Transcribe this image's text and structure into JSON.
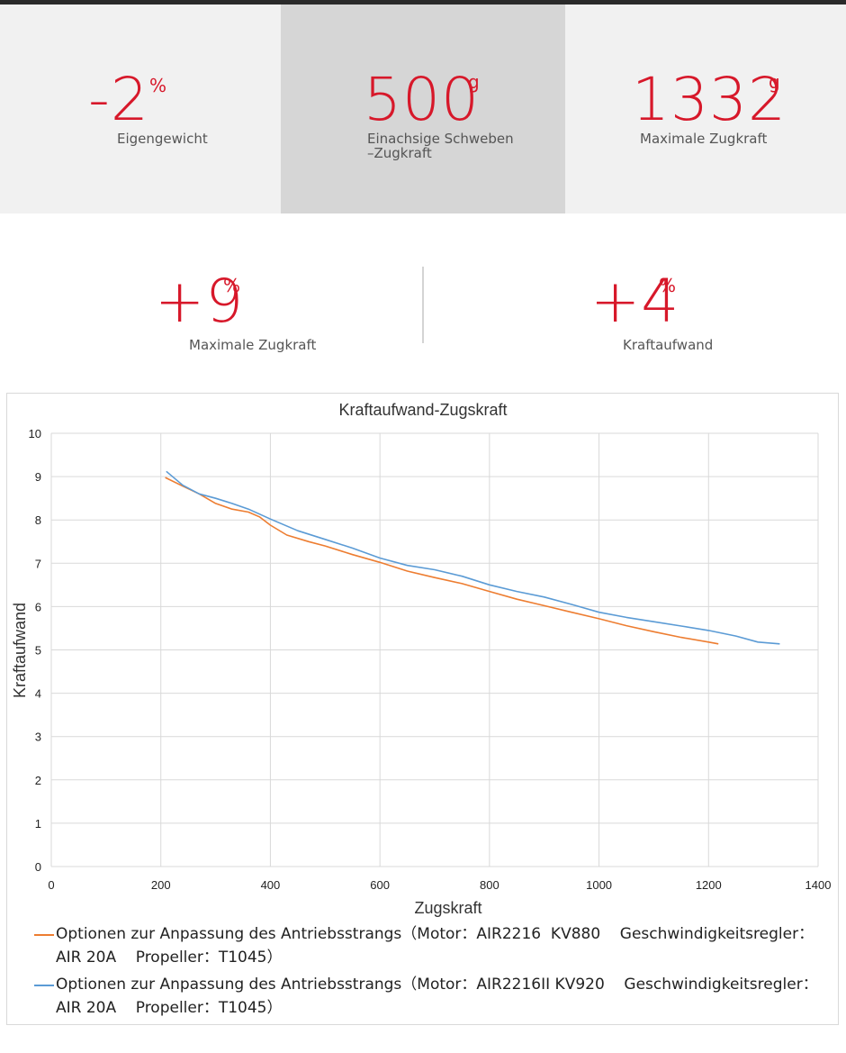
{
  "stats_top": [
    {
      "value": "-2",
      "unit": "%",
      "label": "Eigengewicht"
    },
    {
      "value": "500",
      "unit": "g",
      "label_line1": "Einachsige Schweben",
      "label_line2": "–Zugkraft"
    },
    {
      "value": "1332",
      "unit": "g",
      "label": "Maximale Zugkraft"
    }
  ],
  "stats_bottom": [
    {
      "value": "+9",
      "unit": "%",
      "label": "Maximale Zugkraft"
    },
    {
      "value": "+4",
      "unit": "%",
      "label": "Kraftaufwand"
    }
  ],
  "colors": {
    "accent_red": "#d7182a",
    "series_orange": "#ed7d31",
    "series_blue": "#5b9bd5"
  },
  "chart_data": {
    "type": "line",
    "title": "Kraftaufwand-Zugskraft",
    "xlabel": "Zugskraft",
    "ylabel": "Kraftaufwand",
    "xlim": [
      0,
      1400
    ],
    "ylim": [
      0,
      10
    ],
    "x_ticks": [
      0,
      200,
      400,
      600,
      800,
      1000,
      1200,
      1400
    ],
    "y_ticks": [
      0,
      1,
      2,
      3,
      4,
      5,
      6,
      7,
      8,
      9,
      10
    ],
    "grid": true,
    "legend_position": "bottom",
    "series": [
      {
        "name": "Optionen zur Anpassung des Antriebsstrangs（Motor：AIR2216  KV880    Geschwindigkeitsregler：AIR 20A    Propeller：T1045）",
        "legend_line1": "Optionen zur Anpassung des Antriebsstrangs（Motor：AIR2216  KV880    Geschwindigkeitsregler：",
        "legend_line2": "AIR 20A    Propeller：T1045）",
        "color": "#ed7d31",
        "x": [
          208,
          240,
          270,
          300,
          330,
          360,
          380,
          400,
          430,
          470,
          500,
          550,
          600,
          650,
          700,
          750,
          800,
          850,
          900,
          950,
          1000,
          1050,
          1100,
          1150,
          1200,
          1218
        ],
        "y": [
          8.98,
          8.78,
          8.6,
          8.38,
          8.25,
          8.18,
          8.07,
          7.88,
          7.65,
          7.5,
          7.4,
          7.2,
          7.02,
          6.82,
          6.67,
          6.53,
          6.35,
          6.17,
          6.02,
          5.87,
          5.72,
          5.56,
          5.42,
          5.29,
          5.18,
          5.14
        ]
      },
      {
        "name": "Optionen zur Anpassung des Antriebsstrangs（Motor：AIR2216II KV920    Geschwindigkeitsregler：AIR 20A    Propeller：T1045）",
        "legend_line1": "Optionen zur Anpassung des Antriebsstrangs（Motor：AIR2216II KV920    Geschwindigkeitsregler：",
        "legend_line2": "AIR 20A    Propeller：T1045）",
        "color": "#5b9bd5",
        "x": [
          210,
          240,
          270,
          300,
          330,
          360,
          400,
          450,
          500,
          550,
          600,
          650,
          700,
          750,
          800,
          850,
          900,
          950,
          1000,
          1050,
          1100,
          1150,
          1200,
          1250,
          1290,
          1330
        ],
        "y": [
          9.12,
          8.8,
          8.6,
          8.5,
          8.38,
          8.25,
          8.02,
          7.75,
          7.55,
          7.35,
          7.12,
          6.95,
          6.85,
          6.7,
          6.5,
          6.35,
          6.22,
          6.05,
          5.87,
          5.75,
          5.65,
          5.55,
          5.45,
          5.32,
          5.18,
          5.14
        ]
      }
    ]
  }
}
